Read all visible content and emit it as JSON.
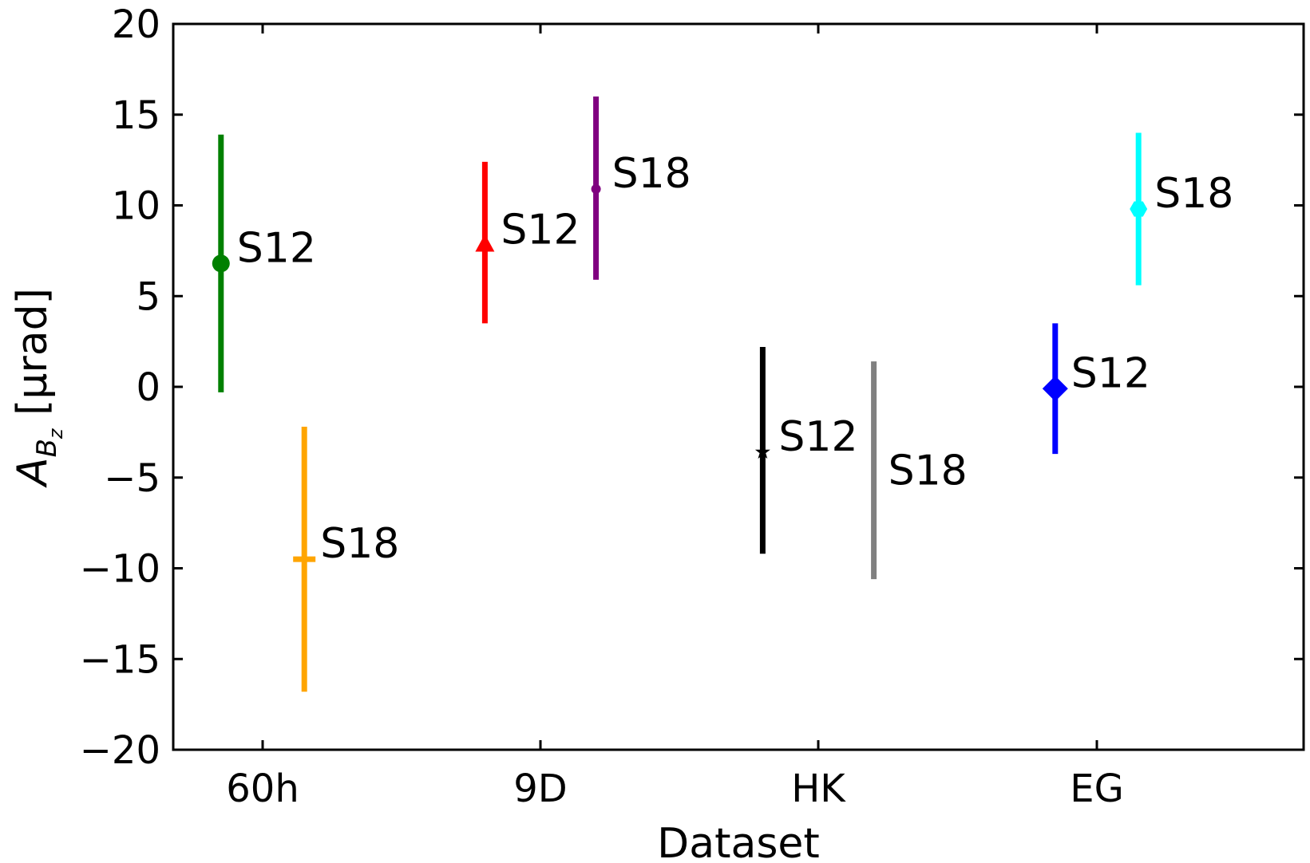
{
  "chart_data": {
    "type": "scatter",
    "xlabel": "Dataset",
    "ylabel_base": "A",
    "ylabel_sub": "B",
    "ylabel_subsub": "z",
    "ylabel_unit": " [μrad]",
    "categories": [
      "60h",
      "9D",
      "HK",
      "EG"
    ],
    "ylim": [
      -20,
      20
    ],
    "yticks": [
      20,
      15,
      10,
      5,
      0,
      -5,
      -10,
      -15,
      -20
    ],
    "ytick_labels": [
      "20",
      "15",
      "10",
      "5",
      "0",
      "−5",
      "−10",
      "−15",
      "−20"
    ],
    "grid": false,
    "points": [
      {
        "label": "S12",
        "category": "60h",
        "offset": -0.15,
        "y": 6.8,
        "ylow": -0.3,
        "yhigh": 13.9,
        "color": "#008000",
        "marker": "circle"
      },
      {
        "label": "S18",
        "category": "60h",
        "offset": 0.15,
        "y": -9.5,
        "ylow": -16.8,
        "yhigh": -2.2,
        "color": "#FFA500",
        "marker": "hline"
      },
      {
        "label": "S12",
        "category": "9D",
        "offset": -0.2,
        "y": 7.8,
        "ylow": 3.5,
        "yhigh": 12.4,
        "color": "#FF0000",
        "marker": "triangle"
      },
      {
        "label": "S18",
        "category": "9D",
        "offset": 0.2,
        "y": 10.9,
        "ylow": 5.9,
        "yhigh": 16.0,
        "color": "#800080",
        "marker": "dot"
      },
      {
        "label": "S12",
        "category": "HK",
        "offset": -0.2,
        "y": -3.6,
        "ylow": -9.2,
        "yhigh": 2.2,
        "color": "#000000",
        "marker": "star"
      },
      {
        "label": "S18",
        "category": "HK",
        "offset": 0.2,
        "y": -4.6,
        "ylow": -10.6,
        "yhigh": 1.4,
        "color": "#808080",
        "marker": "none"
      },
      {
        "label": "S12",
        "category": "EG",
        "offset": -0.15,
        "y": -0.1,
        "ylow": -3.7,
        "yhigh": 3.5,
        "color": "#0000FF",
        "marker": "diamond"
      },
      {
        "label": "S18",
        "category": "EG",
        "offset": 0.15,
        "y": 9.8,
        "ylow": 5.6,
        "yhigh": 14.0,
        "color": "#00FFFF",
        "marker": "hexagon"
      }
    ]
  }
}
